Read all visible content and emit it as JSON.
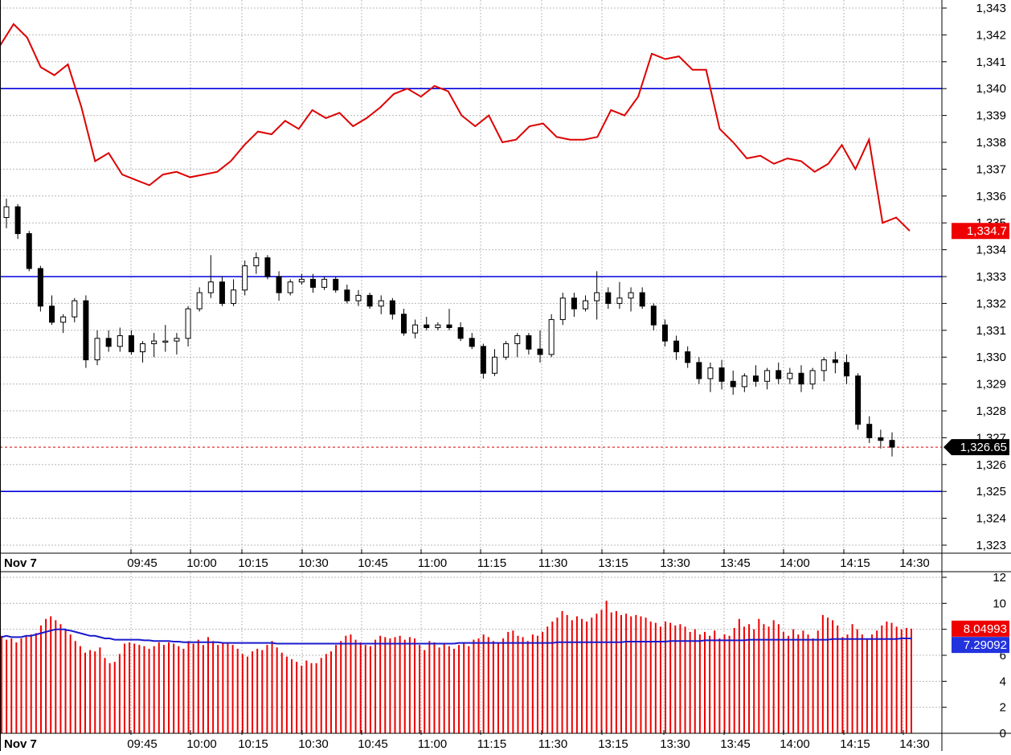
{
  "chart_data": [
    {
      "type": "candlestick",
      "price_axis": {
        "ticks": [
          "1,323",
          "1,324",
          "1,325",
          "1,326",
          "1,327",
          "1,328",
          "1,329",
          "1,330",
          "1,331",
          "1,332",
          "1,333",
          "1,334",
          "1,335",
          "1,336",
          "1,337",
          "1,338",
          "1,339",
          "1,340",
          "1,341",
          "1,342",
          "1,343"
        ],
        "range": [
          1322.6,
          1343.2
        ]
      },
      "time_axis": {
        "ticks": [
          "Nov 7",
          "09:45",
          "10:00",
          "10:15",
          "10:30",
          "10:45",
          "11:00",
          "11:15",
          "11:30",
          "13:15",
          "13:30",
          "13:45",
          "14:00",
          "14:15",
          "14:30"
        ]
      },
      "horizontal_lines": [
        {
          "price": 1340.0,
          "color": "#0000dd"
        },
        {
          "price": 1333.0,
          "color": "#0000dd"
        },
        {
          "price": 1325.0,
          "color": "#0000dd"
        }
      ],
      "last_price_line": {
        "price": 1326.65,
        "color": "#dd0000",
        "style": "dotted"
      },
      "red_line": {
        "color": "#dd0000",
        "last_label": "1,334.7",
        "points": [
          [
            0,
            1341.6
          ],
          [
            1,
            1342.4
          ],
          [
            2,
            1341.9
          ],
          [
            3,
            1340.8
          ],
          [
            4,
            1340.5
          ],
          [
            5,
            1340.9
          ],
          [
            6,
            1339.3
          ],
          [
            7,
            1337.3
          ],
          [
            8,
            1337.6
          ],
          [
            9,
            1336.8
          ],
          [
            10,
            1336.6
          ],
          [
            11,
            1336.4
          ],
          [
            12,
            1336.8
          ],
          [
            13,
            1336.9
          ],
          [
            14,
            1336.7
          ],
          [
            15,
            1336.8
          ],
          [
            16,
            1336.9
          ],
          [
            17,
            1337.3
          ],
          [
            18,
            1337.9
          ],
          [
            19,
            1338.4
          ],
          [
            20,
            1338.3
          ],
          [
            21,
            1338.8
          ],
          [
            22,
            1338.5
          ],
          [
            23,
            1339.2
          ],
          [
            24,
            1338.9
          ],
          [
            25,
            1339.1
          ],
          [
            26,
            1338.6
          ],
          [
            27,
            1338.9
          ],
          [
            28,
            1339.3
          ],
          [
            29,
            1339.8
          ],
          [
            30,
            1340.0
          ],
          [
            31,
            1339.7
          ],
          [
            32,
            1340.1
          ],
          [
            33,
            1339.9
          ],
          [
            34,
            1339.0
          ],
          [
            35,
            1338.6
          ],
          [
            36,
            1339.0
          ],
          [
            37,
            1338.0
          ],
          [
            38,
            1338.1
          ],
          [
            39,
            1338.6
          ],
          [
            40,
            1338.7
          ],
          [
            41,
            1338.2
          ],
          [
            42,
            1338.1
          ],
          [
            43,
            1338.1
          ],
          [
            44,
            1338.2
          ],
          [
            45,
            1339.2
          ],
          [
            46,
            1339.0
          ],
          [
            47,
            1339.7
          ],
          [
            48,
            1341.3
          ],
          [
            49,
            1341.1
          ],
          [
            50,
            1341.2
          ],
          [
            51,
            1340.7
          ],
          [
            52,
            1340.7
          ],
          [
            53,
            1338.5
          ],
          [
            54,
            1338.0
          ],
          [
            55,
            1337.4
          ],
          [
            56,
            1337.5
          ],
          [
            57,
            1337.2
          ],
          [
            58,
            1337.4
          ],
          [
            59,
            1337.3
          ],
          [
            60,
            1336.9
          ],
          [
            61,
            1337.2
          ],
          [
            62,
            1337.9
          ],
          [
            63,
            1337.0
          ],
          [
            64,
            1338.1
          ],
          [
            65,
            1335.0
          ],
          [
            66,
            1335.2
          ],
          [
            67,
            1334.7
          ]
        ]
      },
      "candles": [
        [
          0,
          1335.2,
          1335.9,
          1334.8,
          1335.6
        ],
        [
          1,
          1335.6,
          1335.7,
          1334.4,
          1334.6
        ],
        [
          2,
          1334.6,
          1334.7,
          1333.2,
          1333.3
        ],
        [
          3,
          1333.3,
          1333.4,
          1331.7,
          1331.9
        ],
        [
          4,
          1331.9,
          1332.3,
          1331.2,
          1331.3
        ],
        [
          5,
          1331.3,
          1331.6,
          1330.9,
          1331.5
        ],
        [
          6,
          1331.5,
          1332.2,
          1331.3,
          1332.1
        ],
        [
          7,
          1332.1,
          1332.3,
          1329.6,
          1329.9
        ],
        [
          8,
          1329.9,
          1331.0,
          1329.7,
          1330.7
        ],
        [
          9,
          1330.7,
          1331.0,
          1330.2,
          1330.4
        ],
        [
          10,
          1330.4,
          1331.1,
          1330.2,
          1330.8
        ],
        [
          11,
          1330.8,
          1331.0,
          1330.1,
          1330.2
        ],
        [
          12,
          1330.2,
          1330.6,
          1329.8,
          1330.5
        ],
        [
          13,
          1330.5,
          1330.9,
          1330.0,
          1330.6
        ],
        [
          14,
          1330.6,
          1331.2,
          1330.2,
          1330.6
        ],
        [
          15,
          1330.6,
          1330.9,
          1330.1,
          1330.7
        ],
        [
          16,
          1330.7,
          1331.9,
          1330.4,
          1331.8
        ],
        [
          17,
          1331.8,
          1332.6,
          1331.7,
          1332.4
        ],
        [
          18,
          1332.4,
          1333.8,
          1332.2,
          1332.8
        ],
        [
          19,
          1332.8,
          1333.0,
          1331.9,
          1332.0
        ],
        [
          20,
          1332.0,
          1332.9,
          1331.9,
          1332.5
        ],
        [
          21,
          1332.5,
          1333.6,
          1332.3,
          1333.4
        ],
        [
          22,
          1333.4,
          1333.9,
          1333.1,
          1333.7
        ],
        [
          23,
          1333.7,
          1333.8,
          1332.9,
          1333.0
        ],
        [
          24,
          1333.0,
          1333.2,
          1332.1,
          1332.4
        ],
        [
          25,
          1332.4,
          1332.9,
          1332.3,
          1332.8
        ],
        [
          26,
          1332.8,
          1333.1,
          1332.7,
          1332.9
        ],
        [
          27,
          1332.9,
          1333.1,
          1332.4,
          1332.6
        ],
        [
          28,
          1332.6,
          1333.0,
          1332.5,
          1332.9
        ],
        [
          29,
          1332.9,
          1333.0,
          1332.4,
          1332.5
        ],
        [
          30,
          1332.5,
          1332.7,
          1332.0,
          1332.1
        ],
        [
          31,
          1332.1,
          1332.5,
          1331.9,
          1332.3
        ],
        [
          32,
          1332.3,
          1332.4,
          1331.8,
          1331.9
        ],
        [
          33,
          1331.9,
          1332.3,
          1331.6,
          1332.1
        ],
        [
          34,
          1332.1,
          1332.2,
          1331.4,
          1331.6
        ],
        [
          35,
          1331.6,
          1331.8,
          1330.8,
          1330.9
        ],
        [
          36,
          1330.9,
          1331.4,
          1330.7,
          1331.2
        ],
        [
          37,
          1331.2,
          1331.5,
          1331.0,
          1331.1
        ],
        [
          38,
          1331.1,
          1331.3,
          1331.0,
          1331.2
        ],
        [
          39,
          1331.2,
          1331.8,
          1331.0,
          1331.1
        ],
        [
          40,
          1331.1,
          1331.3,
          1330.6,
          1330.7
        ],
        [
          41,
          1330.7,
          1330.9,
          1330.3,
          1330.4
        ],
        [
          42,
          1330.4,
          1330.5,
          1329.2,
          1329.4
        ],
        [
          43,
          1329.4,
          1330.3,
          1329.3,
          1330.0
        ],
        [
          44,
          1330.0,
          1330.6,
          1329.9,
          1330.5
        ],
        [
          45,
          1330.5,
          1330.9,
          1330.0,
          1330.8
        ],
        [
          46,
          1330.8,
          1330.9,
          1330.1,
          1330.3
        ],
        [
          47,
          1330.3,
          1331.0,
          1329.8,
          1330.1
        ],
        [
          48,
          1330.1,
          1331.6,
          1330.0,
          1331.4
        ],
        [
          49,
          1331.4,
          1332.4,
          1331.2,
          1332.2
        ],
        [
          50,
          1332.2,
          1332.4,
          1331.5,
          1331.8
        ],
        [
          51,
          1331.8,
          1332.3,
          1331.7,
          1332.1
        ],
        [
          52,
          1332.1,
          1333.2,
          1331.4,
          1332.4
        ],
        [
          53,
          1332.4,
          1332.6,
          1331.8,
          1332.0
        ],
        [
          54,
          1332.0,
          1332.8,
          1331.8,
          1332.2
        ],
        [
          55,
          1332.2,
          1332.6,
          1331.7,
          1332.4
        ],
        [
          56,
          1332.4,
          1332.6,
          1331.8,
          1331.9
        ],
        [
          57,
          1331.9,
          1332.0,
          1331.0,
          1331.2
        ],
        [
          58,
          1331.2,
          1331.4,
          1330.4,
          1330.6
        ],
        [
          59,
          1330.6,
          1330.8,
          1329.9,
          1330.2
        ],
        [
          60,
          1330.2,
          1330.4,
          1329.6,
          1329.8
        ],
        [
          61,
          1329.8,
          1330.0,
          1329.0,
          1329.2
        ],
        [
          62,
          1329.2,
          1329.8,
          1328.7,
          1329.6
        ],
        [
          63,
          1329.6,
          1329.9,
          1328.8,
          1329.1
        ],
        [
          64,
          1329.1,
          1329.5,
          1328.6,
          1328.9
        ],
        [
          65,
          1328.9,
          1329.4,
          1328.7,
          1329.3
        ],
        [
          66,
          1329.3,
          1329.7,
          1328.9,
          1329.1
        ],
        [
          67,
          1329.1,
          1329.6,
          1328.8,
          1329.5
        ],
        [
          68,
          1329.5,
          1329.8,
          1329.0,
          1329.2
        ],
        [
          69,
          1329.2,
          1329.6,
          1329.0,
          1329.4
        ],
        [
          70,
          1329.4,
          1329.7,
          1328.7,
          1329.0
        ],
        [
          71,
          1329.0,
          1329.6,
          1328.8,
          1329.5
        ],
        [
          72,
          1329.5,
          1330.0,
          1329.1,
          1329.9
        ],
        [
          73,
          1329.9,
          1330.2,
          1329.4,
          1329.8
        ],
        [
          74,
          1329.8,
          1330.1,
          1329.0,
          1329.3
        ],
        [
          75,
          1329.3,
          1329.4,
          1327.3,
          1327.5
        ],
        [
          76,
          1327.5,
          1327.8,
          1326.8,
          1327.0
        ],
        [
          77,
          1327.0,
          1327.3,
          1326.6,
          1326.9
        ],
        [
          78,
          1326.9,
          1327.2,
          1326.3,
          1326.65
        ]
      ]
    },
    {
      "type": "bar",
      "value_axis": {
        "ticks": [
          "0",
          "2",
          "4",
          "6",
          "8",
          "10",
          "12"
        ],
        "range": [
          0,
          12.6
        ]
      },
      "time_axis": {
        "ticks": [
          "Nov 7",
          "09:45",
          "10:00",
          "10:15",
          "10:30",
          "10:45",
          "11:00",
          "11:15",
          "11:30",
          "13:15",
          "13:30",
          "13:45",
          "14:00",
          "14:15",
          "14:30"
        ]
      },
      "bar_color": "#ee0000",
      "average_color": "#1a1acc",
      "bar_last_label": "8.04993",
      "average_last_label": "7.29092",
      "bars": [
        7.5,
        7.2,
        7.3,
        7.0,
        7.3,
        7.5,
        7.6,
        7.7,
        8.3,
        8.8,
        9.0,
        8.7,
        8.4,
        8.0,
        7.6,
        7.1,
        6.7,
        6.2,
        6.4,
        6.3,
        6.6,
        5.8,
        5.4,
        5.5,
        6.1,
        6.9,
        7.0,
        6.9,
        6.8,
        6.7,
        6.5,
        6.7,
        7.0,
        6.8,
        7.0,
        6.9,
        6.7,
        6.5,
        7.1,
        6.9,
        7.2,
        6.8,
        7.4,
        7.1,
        6.8,
        7.0,
        6.9,
        6.8,
        6.5,
        6.1,
        5.9,
        6.3,
        6.5,
        6.4,
        6.8,
        7.1,
        6.6,
        6.2,
        5.9,
        5.7,
        5.5,
        5.2,
        5.6,
        5.4,
        5.4,
        5.8,
        6.1,
        6.3,
        6.8,
        7.1,
        7.5,
        7.6,
        7.2,
        7.0,
        6.8,
        6.7,
        7.2,
        7.5,
        7.4,
        7.3,
        7.4,
        7.5,
        7.2,
        7.4,
        7.3,
        6.8,
        6.4,
        7.1,
        7.0,
        6.6,
        6.9,
        6.7,
        6.5,
        6.8,
        7.0,
        6.7,
        7.2,
        7.3,
        7.6,
        7.4,
        7.1,
        6.9,
        7.3,
        7.8,
        7.9,
        7.5,
        7.4,
        7.1,
        7.6,
        7.5,
        7.8,
        8.2,
        8.6,
        8.9,
        9.4,
        9.1,
        8.7,
        9.0,
        8.8,
        8.6,
        8.9,
        9.2,
        9.5,
        10.2,
        9.3,
        9.4,
        9.1,
        9.2,
        9.0,
        9.1,
        9.0,
        8.9,
        8.6,
        8.5,
        8.2,
        8.6,
        8.5,
        8.3,
        8.4,
        8.2,
        7.8,
        8.0,
        7.6,
        7.8,
        7.5,
        7.9,
        7.3,
        7.6,
        7.5,
        8.1,
        8.8,
        8.2,
        8.4,
        8.0,
        8.8,
        8.4,
        8.2,
        8.7,
        8.4,
        7.8,
        7.5,
        8.0,
        7.6,
        7.9,
        7.6,
        7.3,
        7.9,
        9.1,
        8.9,
        8.7,
        8.3,
        7.4,
        7.6,
        8.4,
        8.0,
        7.6,
        7.3,
        7.6,
        7.9,
        8.3,
        8.6,
        8.5,
        8.2,
        8.0,
        8.1,
        8.05
      ],
      "average": [
        7.4,
        7.5,
        7.4,
        7.4,
        7.4,
        7.5,
        7.5,
        7.6,
        7.7,
        7.8,
        7.9,
        8.0,
        8.0,
        8.0,
        7.95,
        7.9,
        7.8,
        7.7,
        7.6,
        7.5,
        7.5,
        7.4,
        7.3,
        7.3,
        7.2,
        7.2,
        7.2,
        7.2,
        7.2,
        7.2,
        7.15,
        7.15,
        7.1,
        7.1,
        7.1,
        7.1,
        7.05,
        7.05,
        7.0,
        7.0,
        7.0,
        7.0,
        7.0,
        7.0,
        7.0,
        7.0,
        7.0,
        6.95,
        6.95,
        6.95,
        6.95,
        6.95,
        6.95,
        6.95,
        6.95,
        6.95,
        6.95,
        6.95,
        6.9,
        6.9,
        6.9,
        6.9,
        6.9,
        6.9,
        6.9,
        6.9,
        6.9,
        6.9,
        6.9,
        6.9,
        6.9,
        6.9,
        6.9,
        6.9,
        6.9,
        6.9,
        6.9,
        6.9,
        6.9,
        6.9,
        6.9,
        6.9,
        6.9,
        6.9,
        6.9,
        6.9,
        6.9,
        6.9,
        6.9,
        6.9,
        6.9,
        6.9,
        6.9,
        6.9,
        6.9,
        6.9,
        6.95,
        6.95,
        6.95,
        6.95,
        6.95,
        6.95,
        6.95,
        6.95,
        6.95,
        6.95,
        6.95,
        6.95,
        6.95,
        6.95,
        6.95,
        6.95,
        6.95,
        6.95,
        6.95,
        6.95,
        6.95,
        7.0,
        7.0,
        7.0,
        7.0,
        7.0,
        7.0,
        7.0,
        7.0,
        7.0,
        7.0,
        7.0,
        7.0,
        7.0,
        7.0,
        7.0,
        7.05,
        7.05,
        7.05,
        7.05,
        7.05,
        7.05,
        7.05,
        7.05,
        7.05,
        7.1,
        7.1,
        7.1,
        7.1,
        7.1,
        7.1,
        7.1,
        7.15,
        7.15,
        7.15,
        7.15,
        7.15,
        7.15,
        7.15,
        7.15,
        7.15,
        7.15,
        7.2,
        7.2,
        7.2,
        7.2,
        7.2,
        7.2,
        7.2,
        7.2,
        7.2,
        7.2,
        7.2,
        7.2,
        7.2,
        7.2,
        7.2,
        7.2,
        7.2,
        7.25,
        7.25,
        7.25,
        7.25,
        7.25,
        7.25,
        7.25,
        7.25,
        7.25,
        7.25,
        7.25,
        7.25,
        7.25,
        7.25,
        7.25,
        7.3,
        7.3,
        7.29
      ]
    }
  ]
}
